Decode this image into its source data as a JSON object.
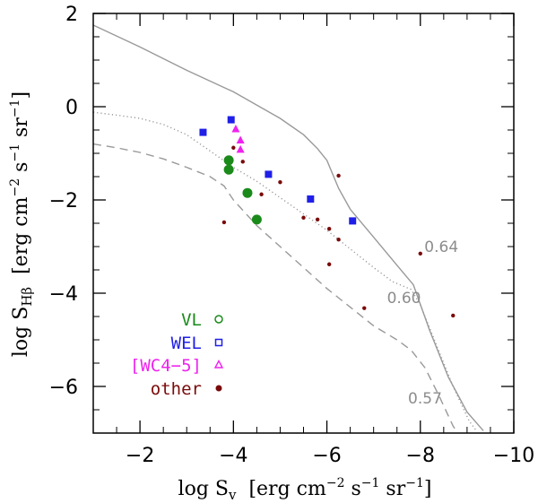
{
  "chart_data": {
    "type": "scatter",
    "xlim": [
      -1,
      -10
    ],
    "ylim": [
      -7,
      2
    ],
    "x_ticks": [
      -2,
      -4,
      -6,
      -8,
      -10
    ],
    "y_ticks": [
      2,
      0,
      -2,
      -4,
      -6
    ],
    "x_tick_labels": [
      "−2",
      "−4",
      "−6",
      "−8",
      "−10"
    ],
    "y_tick_labels": [
      "2",
      "0",
      "−2",
      "−4",
      "−6"
    ],
    "xlabel": {
      "prefix": "log S",
      "sub": "v",
      "units_pre": "[erg cm",
      "exp1": "−2",
      "units_mid": " s",
      "exp2": "−1",
      "units_mid2": " sr",
      "exp3": "−1",
      "units_post": "]"
    },
    "ylabel": {
      "prefix": "log S",
      "sub": "Hβ",
      "units_pre": "[erg cm",
      "exp1": "−2",
      "units_mid": " s",
      "exp2": "−1",
      "units_mid2": " sr",
      "exp3": "−1",
      "units_post": "]"
    },
    "grid": false,
    "legend_position": "bottom-left",
    "colors": {
      "VL": "#1a8a1a",
      "WEL": "#1f1fe8",
      "WC": "#ee22ee",
      "other": "#7a0a0a",
      "curve": "#999999"
    },
    "legend": [
      {
        "key": "VL",
        "label": "VL",
        "marker": "open-circle"
      },
      {
        "key": "WEL",
        "label": "WEL",
        "marker": "open-square"
      },
      {
        "key": "WC",
        "label": "[WC4−5]",
        "marker": "open-triangle"
      },
      {
        "key": "other",
        "label": "other",
        "marker": "filled-circle"
      }
    ],
    "series": [
      {
        "key": "VL",
        "marker": "circle",
        "points": [
          [
            -3.9,
            -1.15
          ],
          [
            -3.9,
            -1.35
          ],
          [
            -4.3,
            -1.85
          ],
          [
            -4.5,
            -2.42
          ]
        ]
      },
      {
        "key": "WEL",
        "marker": "square",
        "points": [
          [
            -3.35,
            -0.55
          ],
          [
            -3.95,
            -0.28
          ],
          [
            -4.75,
            -1.45
          ],
          [
            -5.65,
            -1.98
          ],
          [
            -6.55,
            -2.45
          ]
        ]
      },
      {
        "key": "WC",
        "marker": "triangle",
        "points": [
          [
            -4.05,
            -0.48
          ],
          [
            -4.15,
            -0.72
          ],
          [
            -4.15,
            -0.92
          ]
        ]
      },
      {
        "key": "other",
        "marker": "dot",
        "points": [
          [
            -4.0,
            -0.88
          ],
          [
            -4.2,
            -1.18
          ],
          [
            -3.8,
            -2.48
          ],
          [
            -4.6,
            -1.88
          ],
          [
            -5.0,
            -1.62
          ],
          [
            -5.5,
            -2.38
          ],
          [
            -5.8,
            -2.42
          ],
          [
            -6.05,
            -2.62
          ],
          [
            -6.25,
            -2.85
          ],
          [
            -6.25,
            -1.48
          ],
          [
            -6.05,
            -3.38
          ],
          [
            -6.8,
            -4.32
          ],
          [
            -8.0,
            -3.15
          ],
          [
            -8.7,
            -4.48
          ]
        ]
      }
    ],
    "curves": [
      {
        "label": "0.64",
        "style": "solid",
        "label_at": [
          -8.45,
          -3.0
        ],
        "points": [
          [
            -1.0,
            1.75
          ],
          [
            -2.0,
            1.28
          ],
          [
            -3.0,
            0.78
          ],
          [
            -4.0,
            0.32
          ],
          [
            -5.0,
            -0.25
          ],
          [
            -5.5,
            -0.6
          ],
          [
            -5.8,
            -0.9
          ],
          [
            -6.0,
            -1.15
          ],
          [
            -6.25,
            -1.75
          ],
          [
            -6.5,
            -2.2
          ],
          [
            -7.0,
            -2.8
          ],
          [
            -7.5,
            -3.4
          ],
          [
            -7.85,
            -3.82
          ],
          [
            -8.2,
            -4.8
          ],
          [
            -8.6,
            -5.8
          ],
          [
            -9.0,
            -6.55
          ],
          [
            -9.35,
            -6.95
          ]
        ]
      },
      {
        "label": "0.60",
        "style": "dotted",
        "label_at": [
          -7.65,
          -4.1
        ],
        "points": [
          [
            -1.0,
            -0.12
          ],
          [
            -1.5,
            -0.18
          ],
          [
            -2.0,
            -0.25
          ],
          [
            -2.5,
            -0.38
          ],
          [
            -3.0,
            -0.6
          ],
          [
            -3.5,
            -0.95
          ],
          [
            -4.0,
            -1.3
          ],
          [
            -4.5,
            -1.6
          ],
          [
            -5.0,
            -1.95
          ],
          [
            -5.5,
            -2.3
          ],
          [
            -6.0,
            -2.65
          ],
          [
            -6.5,
            -3.05
          ],
          [
            -7.0,
            -3.45
          ],
          [
            -7.4,
            -3.75
          ],
          [
            -7.8,
            -3.92
          ],
          [
            -8.0,
            -4.25
          ],
          [
            -8.3,
            -5.0
          ],
          [
            -8.7,
            -6.0
          ],
          [
            -9.05,
            -6.75
          ],
          [
            -9.2,
            -6.95
          ]
        ]
      },
      {
        "label": "0.57",
        "style": "dashed",
        "label_at": [
          -8.1,
          -6.25
        ],
        "points": [
          [
            -1.0,
            -0.8
          ],
          [
            -1.5,
            -0.88
          ],
          [
            -2.0,
            -0.98
          ],
          [
            -2.5,
            -1.12
          ],
          [
            -3.0,
            -1.3
          ],
          [
            -3.5,
            -1.5
          ],
          [
            -3.8,
            -1.7
          ],
          [
            -4.0,
            -2.0
          ],
          [
            -4.5,
            -2.55
          ],
          [
            -5.0,
            -3.0
          ],
          [
            -5.5,
            -3.45
          ],
          [
            -6.0,
            -3.9
          ],
          [
            -6.5,
            -4.3
          ],
          [
            -7.0,
            -4.7
          ],
          [
            -7.5,
            -5.0
          ],
          [
            -7.8,
            -5.22
          ],
          [
            -8.1,
            -5.6
          ],
          [
            -8.4,
            -6.2
          ],
          [
            -8.7,
            -6.85
          ],
          [
            -8.8,
            -7.0
          ]
        ]
      }
    ]
  }
}
